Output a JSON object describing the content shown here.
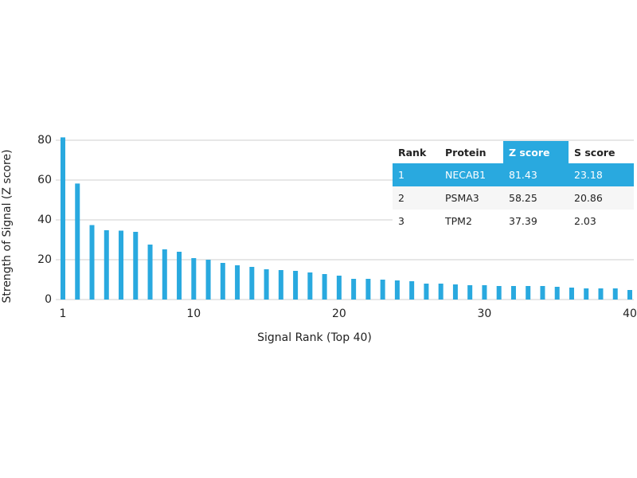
{
  "chart_data": {
    "type": "bar",
    "xlabel": "Signal Rank (Top 40)",
    "ylabel": "Strength of Signal (Z score)",
    "x": [
      1,
      2,
      3,
      4,
      5,
      6,
      7,
      8,
      9,
      10,
      11,
      12,
      13,
      14,
      15,
      16,
      17,
      18,
      19,
      20,
      21,
      22,
      23,
      24,
      25,
      26,
      27,
      28,
      29,
      30,
      31,
      32,
      33,
      34,
      35,
      36,
      37,
      38,
      39,
      40
    ],
    "values": [
      81.43,
      58.25,
      37.39,
      34.8,
      34.6,
      34,
      27.6,
      25.2,
      24,
      20.8,
      20,
      18.4,
      17.2,
      16.4,
      15.2,
      14.8,
      14.4,
      13.6,
      12.8,
      12,
      10.4,
      10.4,
      10,
      9.6,
      9.2,
      8,
      8,
      7.6,
      7.2,
      7.2,
      6.8,
      6.8,
      6.8,
      6.8,
      6.4,
      6,
      5.6,
      5.6,
      5.6,
      4.8
    ],
    "color": "#29a9df",
    "xlim": [
      1,
      40
    ],
    "xticks": [
      1,
      10,
      20,
      30,
      40
    ],
    "ylim": [
      0,
      80
    ],
    "yticks": [
      0,
      20,
      40,
      60,
      80
    ],
    "grid": true
  },
  "table": {
    "columns": [
      "Rank",
      "Protein",
      "Z score",
      "S score"
    ],
    "rows": [
      [
        "1",
        "NECAB1",
        "81.43",
        "23.18"
      ],
      [
        "2",
        "PSMA3",
        "58.25",
        "20.86"
      ],
      [
        "3",
        "TPM2",
        "37.39",
        "2.03"
      ]
    ]
  }
}
